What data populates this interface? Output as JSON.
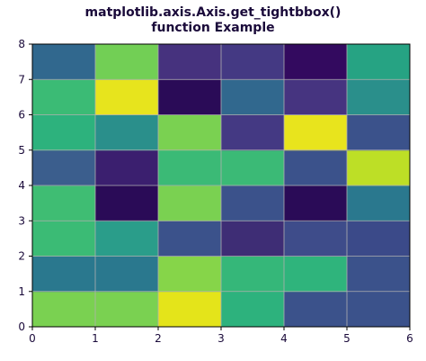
{
  "chart_data": {
    "type": "heatmap",
    "title_lines": [
      "matplotlib.axis.Axis.get_tightbbox()",
      "function Example"
    ],
    "xlim": [
      0,
      6
    ],
    "ylim": [
      0,
      8
    ],
    "x_ticks": [
      "0",
      "1",
      "2",
      "3",
      "4",
      "5",
      "6"
    ],
    "y_ticks": [
      "0",
      "1",
      "2",
      "3",
      "4",
      "5",
      "6",
      "7",
      "8"
    ],
    "grid": true,
    "rows_bottom_to_top": [
      [
        "#7ad151",
        "#7ad151",
        "#e4e41a",
        "#2db27d",
        "#3b528b",
        "#3b528b"
      ],
      [
        "#2a788e",
        "#2a788e",
        "#86d549",
        "#35b779",
        "#2fb47c",
        "#3b528b"
      ],
      [
        "#3bbb75",
        "#2a9d8a",
        "#3b528b",
        "#3e2d75",
        "#3e4c8a",
        "#3b4a89"
      ],
      [
        "#3fbd73",
        "#2a0b57",
        "#7ad151",
        "#3b528b",
        "#2a0b57",
        "#2a788e"
      ],
      [
        "#3b5e8d",
        "#3b1f6f",
        "#3bba76",
        "#3bba76",
        "#3b528b",
        "#bddf26"
      ],
      [
        "#2db27d",
        "#2a8f8b",
        "#7ad151",
        "#443983",
        "#e8e41d",
        "#3b528b"
      ],
      [
        "#3bbb75",
        "#e7e41d",
        "#2a0b57",
        "#31688e",
        "#463480",
        "#2a8f8b"
      ],
      [
        "#31688e",
        "#72cf55",
        "#46327e",
        "#443983",
        "#330a5f",
        "#26a383"
      ]
    ]
  }
}
